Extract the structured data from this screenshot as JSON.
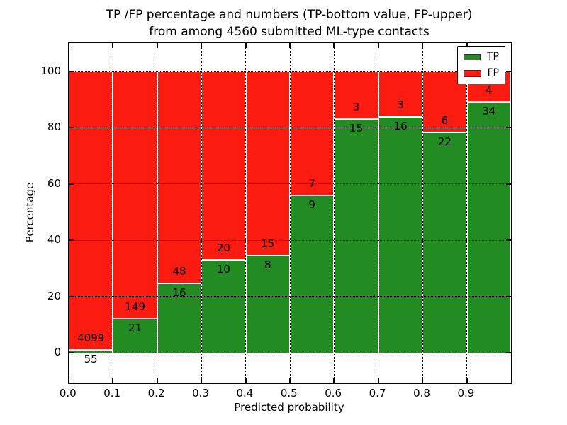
{
  "chart_data": {
    "type": "bar",
    "stacked": true,
    "title": "TP /FP percentage and numbers (TP-bottom value, FP-upper)",
    "subtitle": "from among 4560 submitted ML-type contacts",
    "xlabel": "Predicted probability",
    "ylabel": "Percentage",
    "categories": [
      "0.0",
      "0.1",
      "0.2",
      "0.3",
      "0.4",
      "0.5",
      "0.6",
      "0.7",
      "0.8",
      "0.9"
    ],
    "x_bin_width": 0.1,
    "xlim": [
      0.0,
      1.0
    ],
    "yticks": [
      0,
      20,
      40,
      60,
      80,
      100
    ],
    "ylim": [
      -10.7,
      110
    ],
    "grid": "dotted",
    "legend_position": "upper right",
    "total_contacts": 4560,
    "series": [
      {
        "name": "TP",
        "color": "#228b22",
        "counts": [
          55,
          21,
          16,
          10,
          8,
          9,
          15,
          16,
          22,
          34
        ]
      },
      {
        "name": "FP",
        "color": "#fb1b10",
        "counts": [
          4099,
          149,
          48,
          20,
          15,
          7,
          3,
          3,
          6,
          4
        ]
      }
    ],
    "bar_percent_tp": [
      1.32,
      12.35,
      25.0,
      33.33,
      34.78,
      56.25,
      83.33,
      84.21,
      78.57,
      89.47
    ]
  }
}
